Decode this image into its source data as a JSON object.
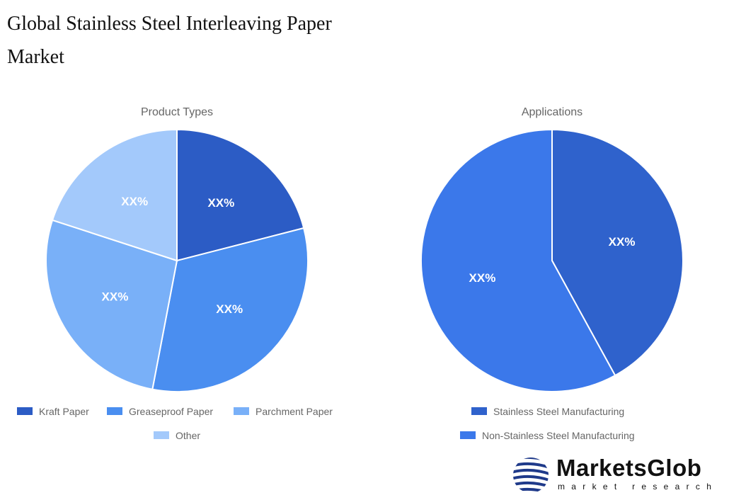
{
  "title": "Global Stainless Steel Interleaving Paper Market",
  "chart_data": [
    {
      "type": "pie",
      "title": "Product Types",
      "categories": [
        "Kraft Paper",
        "Greaseproof Paper",
        "Parchment Paper",
        "Other"
      ],
      "values": [
        21,
        32,
        27,
        20
      ],
      "data_labels": [
        "XX%",
        "XX%",
        "XX%",
        "XX%"
      ],
      "colors": [
        "#2c5cc5",
        "#4a8ef0",
        "#79b0f8",
        "#a3c9fb"
      ],
      "legend": "bottom"
    },
    {
      "type": "pie",
      "title": "Applications",
      "categories": [
        "Stainless Steel Manufacturing",
        "Non-Stainless Steel Manufacturing"
      ],
      "values": [
        42,
        58
      ],
      "data_labels": [
        "XX%",
        "XX%"
      ],
      "colors": [
        "#2f62cc",
        "#3b78ea"
      ],
      "legend": "bottom"
    }
  ],
  "logo": {
    "name": "MarketsGlob",
    "tagline": "market research"
  }
}
